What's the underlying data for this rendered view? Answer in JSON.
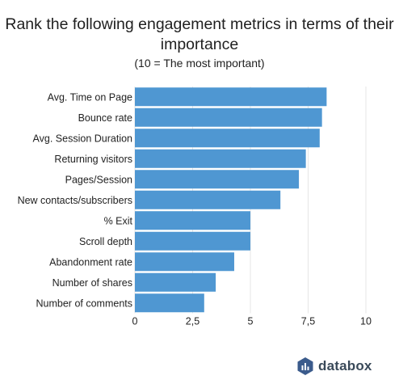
{
  "header": {
    "title": "Rank the following engagement metrics in terms of their importance",
    "subtitle": "(10 = The most important)"
  },
  "brand": {
    "name": "databox",
    "logo_icon": "databox-logo-icon"
  },
  "colors": {
    "bar": "#4f97d2",
    "grid": "#e6e6e6",
    "logo": "#3b5b8c"
  },
  "chart_data": {
    "type": "bar",
    "orientation": "horizontal",
    "title": "Rank the following engagement metrics in terms of their importance",
    "subtitle": "(10 = The most important)",
    "categories": [
      "Avg. Time on Page",
      "Bounce rate",
      "Avg. Session Duration",
      "Returning visitors",
      "Pages/Session",
      "New contacts/subscribers",
      "% Exit",
      "Scroll depth",
      "Abandonment rate",
      "Number of shares",
      "Number of comments"
    ],
    "values": [
      8.3,
      8.1,
      8.0,
      7.4,
      7.1,
      6.3,
      5.0,
      5.0,
      4.3,
      3.5,
      3.0
    ],
    "xlim": [
      0,
      10
    ],
    "xticks": [
      0,
      2.5,
      5,
      7.5,
      10
    ],
    "xtick_labels": [
      "0",
      "2,5",
      "5",
      "7,5",
      "10"
    ],
    "xlabel": "",
    "ylabel": "",
    "grid": true
  }
}
